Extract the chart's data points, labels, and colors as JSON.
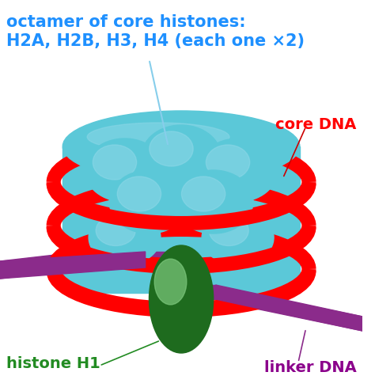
{
  "title_line1": "octamer of core histones:",
  "title_line2": "H2A, H2B, H3, H4 (each one ×2)",
  "title_color": "#1E90FF",
  "label_core_dna": "core DNA",
  "label_core_dna_color": "#FF0000",
  "label_histone_h1": "histone H1",
  "label_histone_h1_color": "#228B22",
  "label_linker_dna": "linker DNA",
  "label_linker_dna_color": "#8B008B",
  "bg_color": "#FFFFFF",
  "histone_sphere_color_top": "#5BC8D8",
  "histone_sphere_color_bottom": "#2E86AB",
  "histone_sphere_color_highlight": "#8FD8E8",
  "dna_red_color": "#FF0000",
  "dna_blue_color": "#4096AA",
  "linker_color": "#8B2B8B",
  "h1_green_top": "#7DC87D",
  "h1_green_bottom": "#1E6B1E",
  "arrow_color": "#87CEEB"
}
